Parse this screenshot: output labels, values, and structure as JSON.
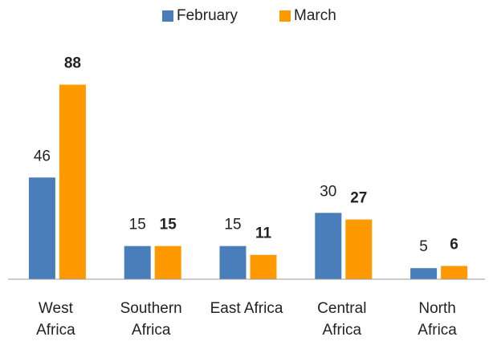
{
  "chart_data": {
    "type": "bar",
    "categories": [
      "West\nAfrica",
      "Southern\nAfrica",
      "East Africa",
      "Central\nAfrica",
      "North\nAfrica"
    ],
    "series": [
      {
        "name": "February",
        "color": "#4a7ebb",
        "values": [
          46,
          15,
          15,
          30,
          5
        ]
      },
      {
        "name": "March",
        "color": "#ff9900",
        "values": [
          88,
          15,
          11,
          27,
          6
        ]
      }
    ],
    "ylim": [
      0,
      90
    ],
    "legend": "top"
  }
}
